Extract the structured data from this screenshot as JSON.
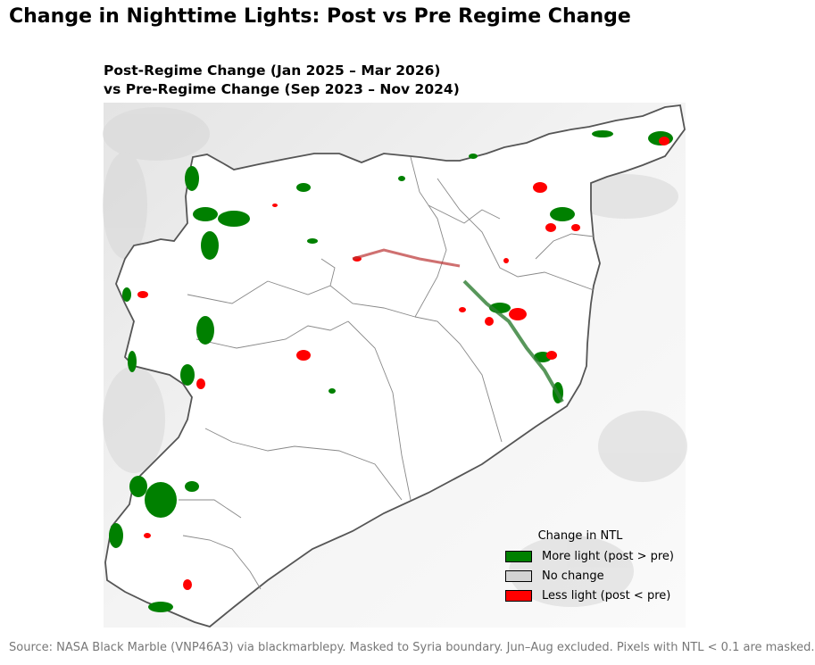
{
  "title": "Change in Nighttime Lights: Post vs Pre Regime Change",
  "subtitle_line1": "Post-Regime Change (Jan 2025 – Mar 2026)",
  "subtitle_line2": "vs Pre-Regime Change (Sep 2023 – Nov 2024)",
  "legend": {
    "title": "Change in NTL",
    "items": [
      {
        "label": "More light (post > pre)",
        "color": "#008000"
      },
      {
        "label": "No change",
        "color": "#d3d3d3"
      },
      {
        "label": "Less light (post < pre)",
        "color": "#ff0000"
      }
    ]
  },
  "source": "Source: NASA Black Marble (VNP46A3) via blackmarblepy. Masked to Syria boundary. Jun–Aug excluded. Pixels with NTL < 0.1 are masked."
}
